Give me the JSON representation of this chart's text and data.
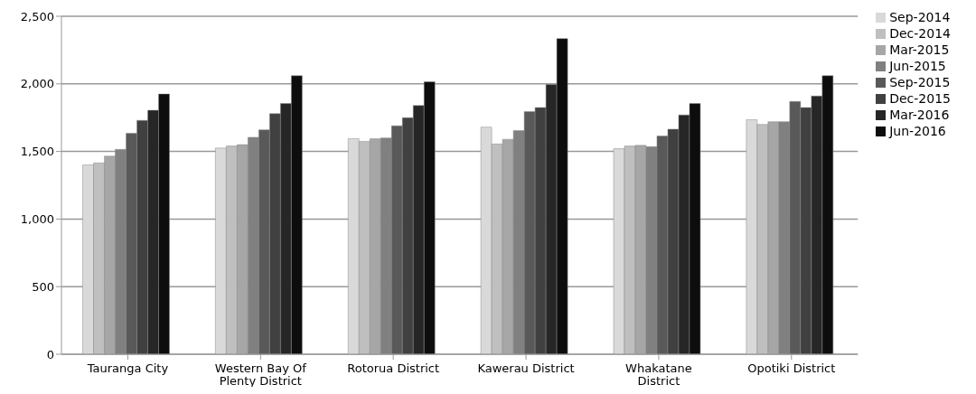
{
  "chart_data": {
    "type": "bar",
    "categories": [
      "Tauranga City",
      "Western Bay Of Plenty District",
      "Rotorua District",
      "Kawerau District",
      "Whakatane District",
      "Opotiki District"
    ],
    "series": [
      {
        "name": "Sep-2014",
        "color": "#d9d9d9",
        "values": [
          1400,
          1525,
          1595,
          1680,
          1520,
          1735
        ]
      },
      {
        "name": "Dec-2014",
        "color": "#bfbfbf",
        "values": [
          1415,
          1540,
          1575,
          1555,
          1540,
          1700
        ]
      },
      {
        "name": "Mar-2015",
        "color": "#a6a6a6",
        "values": [
          1465,
          1550,
          1595,
          1590,
          1545,
          1720
        ]
      },
      {
        "name": "Jun-2015",
        "color": "#808080",
        "values": [
          1515,
          1605,
          1600,
          1655,
          1535,
          1720
        ]
      },
      {
        "name": "Sep-2015",
        "color": "#595959",
        "values": [
          1635,
          1660,
          1690,
          1795,
          1615,
          1870
        ]
      },
      {
        "name": "Dec-2015",
        "color": "#404040",
        "values": [
          1730,
          1780,
          1750,
          1825,
          1665,
          1825
        ]
      },
      {
        "name": "Mar-2016",
        "color": "#262626",
        "values": [
          1805,
          1855,
          1840,
          1995,
          1770,
          1910
        ]
      },
      {
        "name": "Jun-2016",
        "color": "#0d0d0d",
        "values": [
          1925,
          2060,
          2015,
          2335,
          1855,
          2060
        ]
      }
    ],
    "ylim": [
      0,
      2500
    ],
    "yticks": [
      {
        "value": 0,
        "label": "0"
      },
      {
        "value": 500,
        "label": "500"
      },
      {
        "value": 1000,
        "label": "1,000"
      },
      {
        "value": 1500,
        "label": "1,500"
      },
      {
        "value": 2000,
        "label": "2,000"
      },
      {
        "value": 2500,
        "label": "2,500"
      }
    ],
    "grid": "y",
    "legend": "right"
  }
}
